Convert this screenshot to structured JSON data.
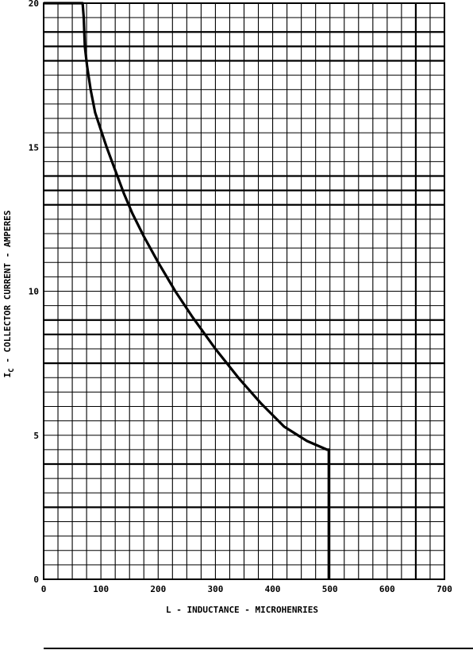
{
  "chart_data": {
    "type": "line",
    "xlabel": "L - INDUCTANCE - MICROHENRIES",
    "ylabel_main": "I",
    "ylabel_sub": "C",
    "ylabel_rest": " - COLLECTOR CURRENT - AMPERES",
    "xlim": [
      0,
      700
    ],
    "ylim": [
      0,
      20
    ],
    "x_ticks": [
      0,
      100,
      200,
      300,
      400,
      500,
      600,
      700
    ],
    "x_tick_labels": [
      "0",
      "100",
      "200",
      "300",
      "400",
      "500",
      "600",
      "700"
    ],
    "y_ticks": [
      0,
      5,
      10,
      15,
      20
    ],
    "y_tick_labels": [
      "0",
      "5",
      "10",
      "15",
      "20"
    ],
    "grid": true,
    "x_minor_step": 25,
    "y_minor_step": 0.5,
    "x_major_lines": [
      650
    ],
    "y_major_lines": [
      2.5,
      4,
      7.5,
      8.5,
      9,
      13,
      13.5,
      14,
      18,
      18.5,
      19
    ],
    "series": [
      {
        "x": [
          0,
          68,
          70,
          72,
          76,
          82,
          90,
          100,
          110,
          125,
          140,
          155,
          175,
          200,
          230,
          260,
          300,
          340,
          380,
          420,
          460,
          495,
          498,
          498
        ],
        "y": [
          20,
          20,
          19.5,
          18.5,
          17.8,
          17.0,
          16.2,
          15.6,
          15.0,
          14.2,
          13.4,
          12.7,
          11.9,
          11.0,
          10.0,
          9.1,
          8.0,
          7.0,
          6.1,
          5.3,
          4.8,
          4.5,
          4.5,
          0
        ]
      }
    ]
  }
}
